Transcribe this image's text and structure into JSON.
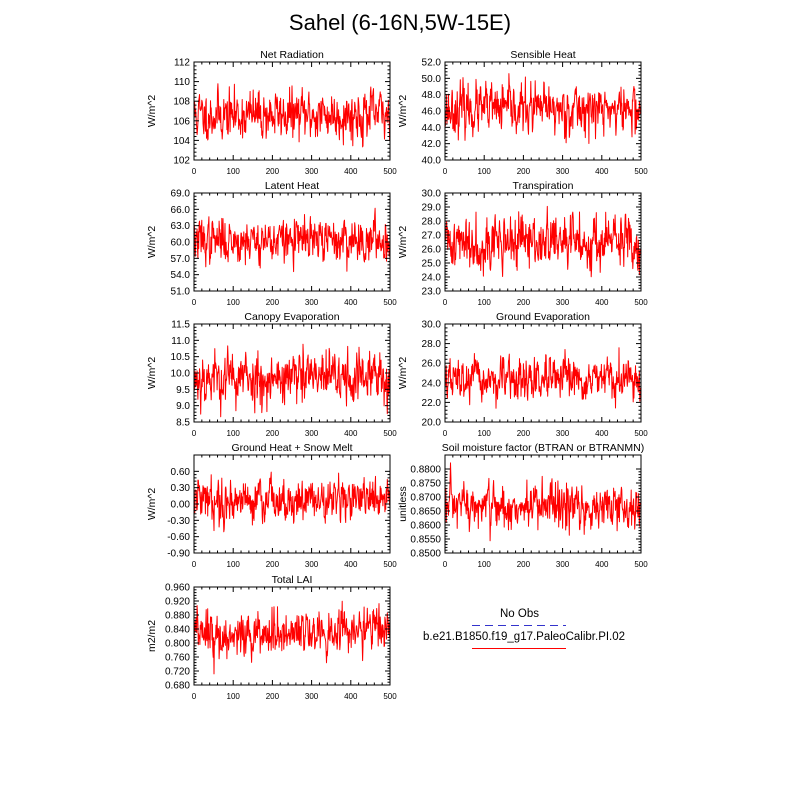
{
  "title": "Sahel (6-16N,5W-15E)",
  "legend": {
    "obs_label": "No Obs",
    "obs_color": "#3333cc",
    "model_label": "b.e21.B1850.f19_g17.PaleoCalibr.PI.02",
    "model_color": "#ff0000"
  },
  "chart_data": [
    {
      "type": "line",
      "title": "Net Radiation",
      "ylabel": "W/m^2",
      "xlim": [
        0,
        500
      ],
      "ylim": [
        102,
        112
      ],
      "xticks": [
        "0",
        "100",
        "200",
        "300",
        "400",
        "500"
      ],
      "yticks": [
        "102",
        "104",
        "106",
        "108",
        "110",
        "112"
      ],
      "series": [
        {
          "seed": 11,
          "n": 500,
          "mean": 106.6,
          "sd": 1.25,
          "trend": 0,
          "x": [
            0,
            50,
            100,
            150,
            200,
            250,
            300,
            350,
            400,
            450,
            499
          ],
          "y": [
            106.5,
            107.0,
            106.0,
            107.5,
            106.5,
            107.0,
            106.3,
            107.3,
            106.5,
            106.8,
            106.4
          ]
        }
      ]
    },
    {
      "type": "line",
      "title": "Sensible Heat",
      "ylabel": "W/m^2",
      "xlim": [
        0,
        500
      ],
      "ylim": [
        40.0,
        52.0
      ],
      "xticks": [
        "0",
        "100",
        "200",
        "300",
        "400",
        "500"
      ],
      "yticks": [
        "40.0",
        "42.0",
        "44.0",
        "46.0",
        "48.0",
        "50.0",
        "52.0"
      ],
      "series": [
        {
          "seed": 23,
          "n": 500,
          "mean": 46.2,
          "sd": 1.5,
          "trend": 0,
          "x": [
            0,
            50,
            100,
            150,
            200,
            250,
            300,
            350,
            400,
            450,
            499
          ],
          "y": [
            45.5,
            46.5,
            46.0,
            47.0,
            46.5,
            46.0,
            45.8,
            46.5,
            46.0,
            46.8,
            45.5
          ]
        }
      ]
    },
    {
      "type": "line",
      "title": "Latent Heat",
      "ylabel": "W/m^2",
      "xlim": [
        0,
        500
      ],
      "ylim": [
        51.0,
        69.0
      ],
      "xticks": [
        "0",
        "100",
        "200",
        "300",
        "400",
        "500"
      ],
      "yticks": [
        "51.0",
        "54.0",
        "57.0",
        "60.0",
        "63.0",
        "66.0",
        "69.0"
      ],
      "series": [
        {
          "seed": 37,
          "n": 500,
          "mean": 60.3,
          "sd": 2.0,
          "trend": 0,
          "x": [
            0,
            50,
            100,
            150,
            200,
            250,
            300,
            350,
            400,
            450,
            499
          ],
          "y": [
            60.0,
            61.0,
            60.5,
            60.0,
            60.8,
            59.5,
            59.8,
            60.5,
            61.0,
            60.2,
            61.5
          ]
        }
      ]
    },
    {
      "type": "line",
      "title": "Transpiration",
      "ylabel": "W/m^2",
      "xlim": [
        0,
        500
      ],
      "ylim": [
        23.0,
        30.0
      ],
      "xticks": [
        "0",
        "100",
        "200",
        "300",
        "400",
        "500"
      ],
      "yticks": [
        "23.0",
        "24.0",
        "25.0",
        "26.0",
        "27.0",
        "28.0",
        "29.0",
        "30.0"
      ],
      "series": [
        {
          "seed": 41,
          "n": 500,
          "mean": 26.5,
          "sd": 0.95,
          "trend": 0,
          "x": [
            0,
            50,
            100,
            150,
            200,
            250,
            300,
            350,
            400,
            450,
            499
          ],
          "y": [
            26.0,
            27.0,
            26.5,
            26.0,
            27.0,
            26.5,
            26.2,
            26.8,
            26.5,
            27.0,
            26.0
          ]
        }
      ]
    },
    {
      "type": "line",
      "title": "Canopy Evaporation",
      "ylabel": "W/m^2",
      "xlim": [
        0,
        500
      ],
      "ylim": [
        8.5,
        11.5
      ],
      "xticks": [
        "0",
        "100",
        "200",
        "300",
        "400",
        "500"
      ],
      "yticks": [
        "8.5",
        "9.0",
        "9.5",
        "10.0",
        "10.5",
        "11.0",
        "11.5"
      ],
      "series": [
        {
          "seed": 53,
          "n": 500,
          "mean": 9.85,
          "sd": 0.42,
          "trend": 0,
          "x": [
            0,
            50,
            100,
            150,
            200,
            250,
            300,
            350,
            400,
            450,
            499
          ],
          "y": [
            9.6,
            10.2,
            9.5,
            10.0,
            10.1,
            9.8,
            9.5,
            10.0,
            9.9,
            10.0,
            9.6
          ]
        }
      ]
    },
    {
      "type": "line",
      "title": "Ground Evaporation",
      "ylabel": "W/m^2",
      "xlim": [
        0,
        500
      ],
      "ylim": [
        20.0,
        30.0
      ],
      "xticks": [
        "0",
        "100",
        "200",
        "300",
        "400",
        "500"
      ],
      "yticks": [
        "20.0",
        "22.0",
        "24.0",
        "26.0",
        "28.0",
        "30.0"
      ],
      "series": [
        {
          "seed": 67,
          "n": 500,
          "mean": 24.2,
          "sd": 1.05,
          "trend": 0,
          "x": [
            0,
            50,
            100,
            150,
            200,
            250,
            300,
            350,
            400,
            450,
            499
          ],
          "y": [
            24.5,
            25.0,
            24.0,
            24.2,
            24.5,
            24.0,
            24.0,
            24.3,
            24.0,
            24.5,
            24.0
          ]
        }
      ]
    },
    {
      "type": "line",
      "title": "Ground Heat + Snow Melt",
      "ylabel": "W/m^2",
      "xlim": [
        0,
        500
      ],
      "ylim": [
        -0.9,
        0.9
      ],
      "xticks": [
        "0",
        "100",
        "200",
        "300",
        "400",
        "500"
      ],
      "yticks": [
        "-0.90",
        "-0.60",
        "-0.30",
        "0.00",
        "0.30",
        "0.60"
      ],
      "series": [
        {
          "seed": 79,
          "n": 500,
          "mean": 0.08,
          "sd": 0.2,
          "trend": 0,
          "x": [
            0,
            50,
            100,
            150,
            200,
            250,
            300,
            350,
            400,
            450,
            499
          ],
          "y": [
            0.05,
            0.15,
            0.1,
            0.0,
            0.1,
            0.05,
            0.1,
            0.1,
            0.05,
            0.1,
            0.05
          ]
        }
      ]
    },
    {
      "type": "line",
      "title": "Soil moisture factor (BTRAN or BTRANMN)",
      "ylabel": "unitless",
      "xlim": [
        0,
        500
      ],
      "ylim": [
        0.85,
        0.885
      ],
      "xticks": [
        "0",
        "100",
        "200",
        "300",
        "400",
        "500"
      ],
      "yticks": [
        "0.8500",
        "0.8550",
        "0.8600",
        "0.8650",
        "0.8700",
        "0.8750",
        "0.8800"
      ],
      "series": [
        {
          "seed": 97,
          "n": 500,
          "mean": 0.8663,
          "sd": 0.0043,
          "trend": 0,
          "x": [
            0,
            50,
            100,
            150,
            200,
            250,
            300,
            350,
            400,
            450,
            499
          ],
          "y": [
            0.866,
            0.867,
            0.8665,
            0.866,
            0.8668,
            0.8662,
            0.866,
            0.8665,
            0.866,
            0.8662,
            0.8665
          ]
        }
      ]
    },
    {
      "type": "line",
      "title": "Total LAI",
      "ylabel": "m2/m2",
      "xlim": [
        0,
        500
      ],
      "ylim": [
        0.68,
        0.96
      ],
      "xticks": [
        "0",
        "100",
        "200",
        "300",
        "400",
        "500"
      ],
      "yticks": [
        "0.680",
        "0.720",
        "0.760",
        "0.800",
        "0.840",
        "0.880",
        "0.920",
        "0.960"
      ],
      "series": [
        {
          "seed": 113,
          "n": 500,
          "mean": 0.83,
          "sd": 0.032,
          "trend": 0.03,
          "x": [
            0,
            50,
            100,
            150,
            200,
            250,
            300,
            350,
            400,
            450,
            499
          ],
          "y": [
            0.81,
            0.8,
            0.82,
            0.83,
            0.84,
            0.82,
            0.8,
            0.83,
            0.85,
            0.86,
            0.84
          ]
        }
      ]
    }
  ]
}
